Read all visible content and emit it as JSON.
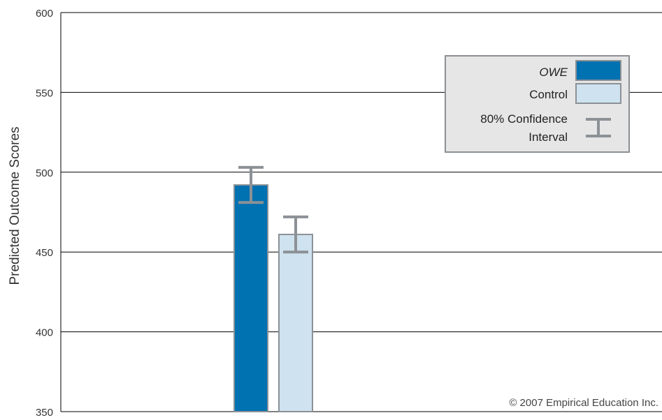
{
  "chart_data": {
    "type": "bar",
    "title": "",
    "xlabel": "",
    "ylabel": "Predicted Outcome Scores",
    "ylim": [
      350,
      600
    ],
    "yticks": [
      350,
      400,
      450,
      500,
      550,
      600
    ],
    "grid": true,
    "legend_position": "top-right",
    "categories": [
      ""
    ],
    "series": [
      {
        "name": "OWE",
        "values": [
          492
        ],
        "ci_low": [
          481
        ],
        "ci_high": [
          503
        ],
        "color": "#0071b1"
      },
      {
        "name": "Control",
        "values": [
          461
        ],
        "ci_low": [
          450
        ],
        "ci_high": [
          472
        ],
        "color": "#cfe2ef"
      }
    ],
    "legend": {
      "items": [
        {
          "label": "OWE",
          "italic": true,
          "swatch": "#0071b1"
        },
        {
          "label": "Control",
          "italic": false,
          "swatch": "#cfe2ef"
        }
      ],
      "ci_label_line1": "80% Confidence",
      "ci_label_line2": "Interval"
    },
    "copyright": "© 2007 Empirical Education Inc.",
    "colors": {
      "error_bar": "#8c9196",
      "bar_border": "#8c9196",
      "legend_bg": "#e6e6e6",
      "legend_border": "#8c9196",
      "grid": "#000000"
    }
  }
}
